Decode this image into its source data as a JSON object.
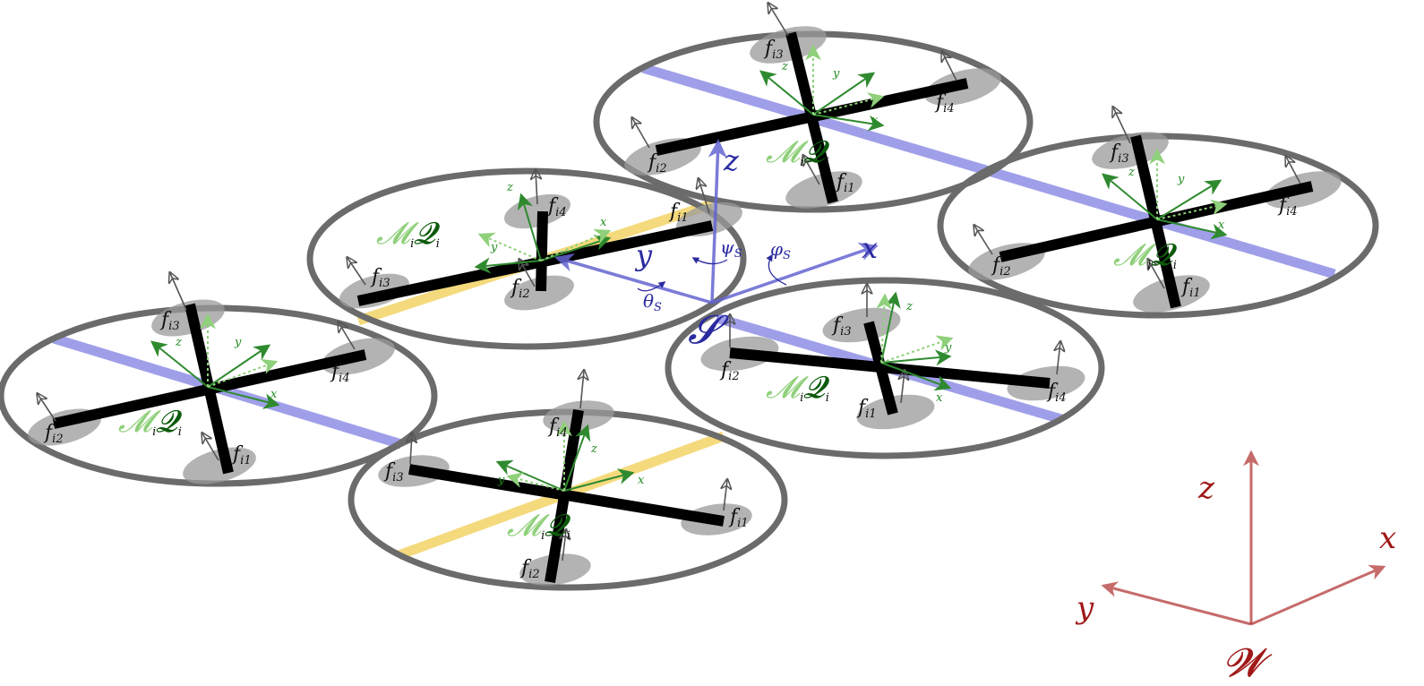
{
  "labels": {
    "rotor_f1_base": "f",
    "rotor_f1_sub": "i1",
    "rotor_f2_base": "f",
    "rotor_f2_sub": "i2",
    "rotor_f3_base": "f",
    "rotor_f3_sub": "i3",
    "rotor_f4_base": "f",
    "rotor_f4_sub": "i4",
    "module_M": "𝓜",
    "module_M_sub": "i",
    "module_Q": "𝓠",
    "module_Q_sub": "i",
    "local_x": "x",
    "local_y": "y",
    "local_z": "z"
  },
  "structure_frame": {
    "origin": "𝓢",
    "x": "x",
    "y": "y",
    "z": "z",
    "phi": "φ",
    "phi_sub": "S",
    "theta": "θ",
    "theta_sub": "S",
    "psi": "ψ",
    "psi_sub": "S"
  },
  "world_frame": {
    "origin": "𝓦",
    "x": "x",
    "y": "y",
    "z": "z"
  },
  "colors": {
    "ring": "#6b6b6b",
    "arm": "#000000",
    "rotor_disc": "#9a9a9a",
    "link_blue": "#8f8fe6",
    "link_yellow": "#f5d770",
    "structure_frame": "#6464d2",
    "world_frame": "#b43a3a",
    "local_axis_dark": "#2f8a2f",
    "local_axis_light": "#8fd07a",
    "M_label": "#8fd07a",
    "Q_label": "#0b5a0b"
  }
}
